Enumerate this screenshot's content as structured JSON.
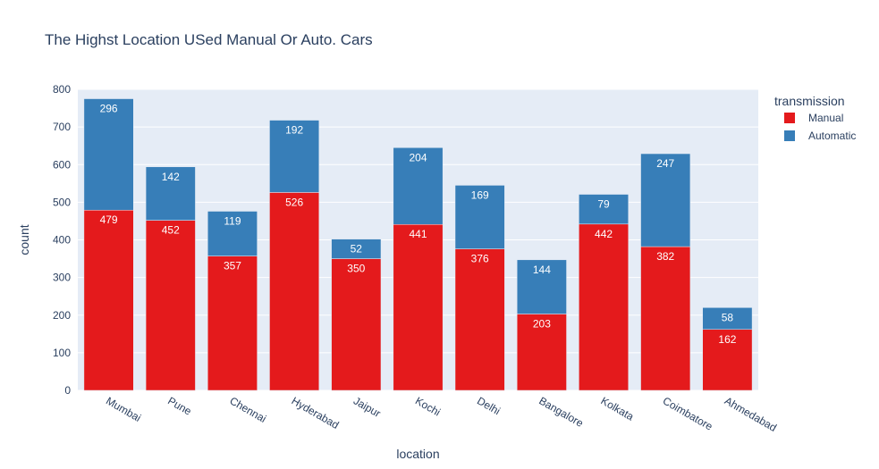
{
  "chart_data": {
    "type": "bar",
    "title": "The Highst Location USed Manual Or Auto. Cars",
    "xlabel": "location",
    "ylabel": "count",
    "ylim": [
      0,
      800
    ],
    "yticks": [
      0,
      100,
      200,
      300,
      400,
      500,
      600,
      700,
      800
    ],
    "grid": true,
    "legend_position": "top-right",
    "stacked": true,
    "categories": [
      "Mumbai",
      "Pune",
      "Chennai",
      "Hyderabad",
      "Jaipur",
      "Kochi",
      "Delhi",
      "Bangalore",
      "Kolkata",
      "Coimbatore",
      "Ahmedabad"
    ],
    "series": [
      {
        "name": "Manual",
        "color": "#e41a1c",
        "values": [
          479,
          452,
          357,
          526,
          350,
          441,
          376,
          203,
          442,
          382,
          162
        ]
      },
      {
        "name": "Automatic",
        "color": "#377eb8",
        "values": [
          296,
          142,
          119,
          192,
          52,
          204,
          169,
          144,
          79,
          247,
          58
        ]
      }
    ],
    "legend_title": "transmission",
    "plot_background": "#e5ecf6"
  }
}
